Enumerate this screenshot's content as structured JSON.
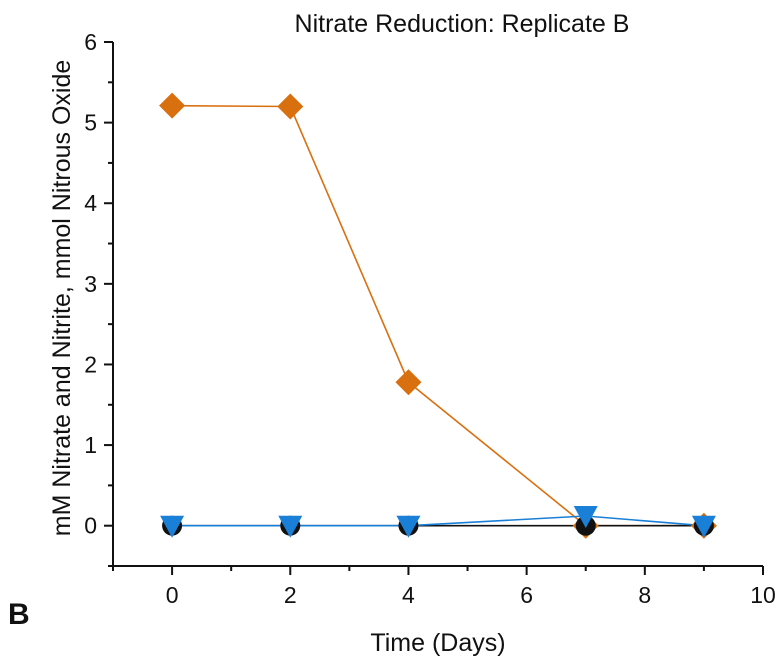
{
  "panel_label": "B",
  "chart_data": {
    "type": "line",
    "title": "Nitrate Reduction: Replicate B",
    "xlabel": "Time (Days)",
    "ylabel": "mM Nitrate and Nitrite, mmol Nitrous Oxide",
    "xlim": [
      -1,
      10
    ],
    "ylim": [
      -0.5,
      6
    ],
    "x_ticks": [
      0,
      2,
      4,
      6,
      8,
      10
    ],
    "y_ticks": [
      0,
      1,
      2,
      3,
      4,
      5,
      6
    ],
    "grid": false,
    "legend": "none",
    "series": [
      {
        "marker": "diamond",
        "color": "#d9700f",
        "x": [
          0,
          2,
          4,
          7,
          9
        ],
        "y": [
          5.21,
          5.2,
          1.78,
          0.0,
          0.0
        ]
      },
      {
        "marker": "circle",
        "color": "#111111",
        "x": [
          0,
          2,
          4,
          7,
          9
        ],
        "y": [
          0.0,
          0.0,
          0.0,
          0.0,
          0.0
        ]
      },
      {
        "marker": "triangle-down",
        "color": "#1a7fd6",
        "x": [
          0,
          2,
          4,
          7,
          9
        ],
        "y": [
          0.0,
          0.0,
          0.0,
          0.12,
          0.0
        ]
      }
    ]
  }
}
